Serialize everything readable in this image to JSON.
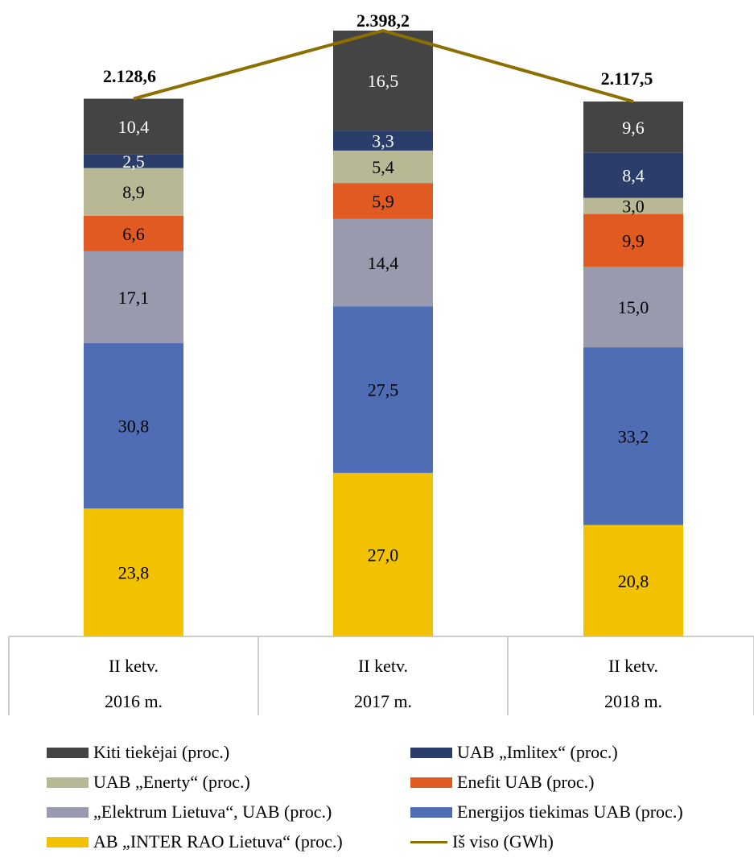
{
  "chart_data": {
    "type": "bar",
    "stacked": true,
    "categories": [
      "II ketv.\n2016 m.",
      "II ketv.\n2017 m.",
      "II ketv.\n2018 m."
    ],
    "category_lines": [
      [
        "II ketv.",
        "2016 m."
      ],
      [
        "II ketv.",
        "2017 m."
      ],
      [
        "II ketv.",
        "2018 m."
      ]
    ],
    "series": [
      {
        "name": "AB „INTER RAO Lietuva“ (proc.)",
        "color": "#F2C200",
        "values": [
          23.8,
          27.0,
          20.8
        ],
        "labels": [
          "23,8",
          "27,0",
          "20,8"
        ],
        "label_color": "#000000"
      },
      {
        "name": "Energijos tiekimas UAB (proc.)",
        "color": "#4F6DB5",
        "values": [
          30.8,
          27.5,
          33.2
        ],
        "labels": [
          "30,8",
          "27,5",
          "33,2"
        ],
        "label_color": "#000000"
      },
      {
        "name": "„Elektrum Lietuva“, UAB (proc.)",
        "color": "#9A9AAE",
        "values": [
          17.1,
          14.4,
          15.0
        ],
        "labels": [
          "17,1",
          "14,4",
          "15,0"
        ],
        "label_color": "#000000"
      },
      {
        "name": "Enefit UAB (proc.)",
        "color": "#E05A22",
        "values": [
          6.6,
          5.9,
          9.9
        ],
        "labels": [
          "6,6",
          "5,9",
          "9,9"
        ],
        "label_color": "#000000"
      },
      {
        "name": "UAB „Enerty“ (proc.)",
        "color": "#B8B894",
        "values": [
          8.9,
          5.4,
          3.0
        ],
        "labels": [
          "8,9",
          "5,4",
          "3,0"
        ],
        "label_color": "#000000"
      },
      {
        "name": "UAB „Imlitex“ (proc.)",
        "color": "#2B3E6B",
        "values": [
          2.5,
          3.3,
          8.4
        ],
        "labels": [
          "2,5",
          "3,3",
          "8,4"
        ],
        "label_color": "#FFFFFF"
      },
      {
        "name": "Kiti tiekėjai (proc.)",
        "color": "#444444",
        "values": [
          10.4,
          16.5,
          9.6
        ],
        "labels": [
          "10,4",
          "16,5",
          "9,6"
        ],
        "label_color": "#FFFFFF"
      }
    ],
    "line_series": {
      "name": "Iš viso (GWh)",
      "color": "#8B6F00",
      "values": [
        2128.6,
        2398.2,
        2117.5
      ],
      "labels": [
        "2.128,6",
        "2.398,2",
        "2.117,5"
      ]
    },
    "ylim": [
      0,
      100
    ],
    "grid": false,
    "legend_position": "bottom"
  },
  "legend": {
    "items": [
      {
        "label": "Kiti tiekėjai (proc.)",
        "color": "#444444",
        "kind": "box"
      },
      {
        "label": "UAB „Imlitex“ (proc.)",
        "color": "#2B3E6B",
        "kind": "box"
      },
      {
        "label": "UAB „Enerty“ (proc.)",
        "color": "#B8B894",
        "kind": "box"
      },
      {
        "label": "Enefit UAB (proc.)",
        "color": "#E05A22",
        "kind": "box"
      },
      {
        "label": "„Elektrum Lietuva“, UAB (proc.)",
        "color": "#9A9AAE",
        "kind": "box"
      },
      {
        "label": "Energijos tiekimas UAB (proc.)",
        "color": "#4F6DB5",
        "kind": "box"
      },
      {
        "label": "AB „INTER RAO Lietuva“ (proc.)",
        "color": "#F2C200",
        "kind": "box"
      },
      {
        "label": "Iš viso (GWh)",
        "color": "#8B6F00",
        "kind": "line"
      }
    ]
  }
}
